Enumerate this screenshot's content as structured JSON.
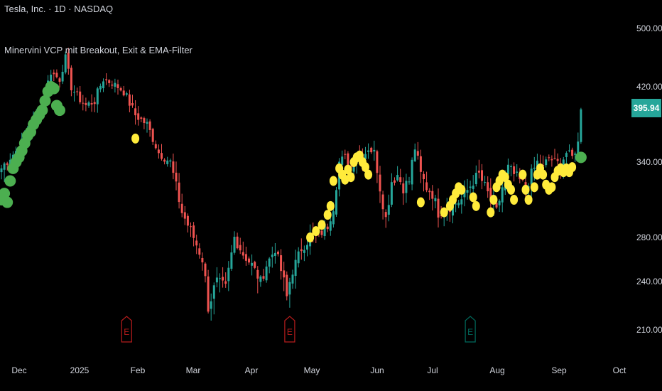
{
  "header": {
    "symbol_line": "Tesla, Inc. · 1D · NASDAQ",
    "indicator_line": "Minervini VCP mit Breakout, Exit & EMA-Filter"
  },
  "last_price_label": "395.94",
  "colors": {
    "background": "#000000",
    "up_candle": "#26a69a",
    "down_candle": "#ef5350",
    "breakout_marker": "#4caf50",
    "exit_marker": "#ffeb3b",
    "earnings_flag_red": "#b71c1c",
    "earnings_flag_green": "#00695c"
  },
  "chart_data": {
    "type": "candlestick",
    "y_axis": {
      "ticks": [
        500,
        420,
        340,
        280,
        240,
        210
      ],
      "range": [
        197,
        520
      ]
    },
    "x_axis": {
      "ticks": [
        "Dec",
        "2025",
        "Feb",
        "Mar",
        "Apr",
        "May",
        "Jun",
        "Jul",
        "Aug",
        "Sep",
        "Oct"
      ]
    },
    "anchors": [
      {
        "d": 0,
        "close": 335
      },
      {
        "d": 6,
        "close": 355
      },
      {
        "d": 10,
        "close": 380
      },
      {
        "d": 14,
        "close": 400
      },
      {
        "d": 17,
        "close": 440
      },
      {
        "d": 20,
        "close": 430
      },
      {
        "d": 22,
        "close": 460
      },
      {
        "d": 24,
        "close": 420
      },
      {
        "d": 26,
        "close": 410
      },
      {
        "d": 29,
        "close": 400
      },
      {
        "d": 32,
        "close": 405
      },
      {
        "d": 35,
        "close": 430
      },
      {
        "d": 38,
        "close": 425
      },
      {
        "d": 42,
        "close": 415
      },
      {
        "d": 46,
        "close": 390
      },
      {
        "d": 50,
        "close": 380
      },
      {
        "d": 54,
        "close": 350
      },
      {
        "d": 58,
        "close": 340
      },
      {
        "d": 62,
        "close": 300
      },
      {
        "d": 66,
        "close": 280
      },
      {
        "d": 69,
        "close": 260
      },
      {
        "d": 71,
        "close": 225
      },
      {
        "d": 74,
        "close": 240
      },
      {
        "d": 77,
        "close": 235
      },
      {
        "d": 80,
        "close": 280
      },
      {
        "d": 83,
        "close": 265
      },
      {
        "d": 86,
        "close": 255
      },
      {
        "d": 89,
        "close": 240
      },
      {
        "d": 91,
        "close": 255
      },
      {
        "d": 94,
        "close": 270
      },
      {
        "d": 96,
        "close": 250
      },
      {
        "d": 98,
        "close": 230
      },
      {
        "d": 100,
        "close": 250
      },
      {
        "d": 103,
        "close": 270
      },
      {
        "d": 106,
        "close": 280
      },
      {
        "d": 109,
        "close": 282
      },
      {
        "d": 112,
        "close": 290
      },
      {
        "d": 114,
        "close": 305
      },
      {
        "d": 116,
        "close": 340
      },
      {
        "d": 118,
        "close": 345
      },
      {
        "d": 120,
        "close": 335
      },
      {
        "d": 122,
        "close": 350
      },
      {
        "d": 124,
        "close": 345
      },
      {
        "d": 126,
        "close": 355
      },
      {
        "d": 128,
        "close": 350
      },
      {
        "d": 130,
        "close": 320
      },
      {
        "d": 132,
        "close": 295
      },
      {
        "d": 134,
        "close": 325
      },
      {
        "d": 136,
        "close": 330
      },
      {
        "d": 138,
        "close": 320
      },
      {
        "d": 140,
        "close": 325
      },
      {
        "d": 142,
        "close": 355
      },
      {
        "d": 144,
        "close": 330
      },
      {
        "d": 146,
        "close": 320
      },
      {
        "d": 148,
        "close": 315
      },
      {
        "d": 150,
        "close": 300
      },
      {
        "d": 154,
        "close": 305
      },
      {
        "d": 158,
        "close": 310
      },
      {
        "d": 162,
        "close": 325
      },
      {
        "d": 164,
        "close": 330
      },
      {
        "d": 166,
        "close": 320
      },
      {
        "d": 168,
        "close": 310
      },
      {
        "d": 170,
        "close": 300
      },
      {
        "d": 172,
        "close": 320
      },
      {
        "d": 174,
        "close": 335
      },
      {
        "d": 176,
        "close": 330
      },
      {
        "d": 178,
        "close": 325
      },
      {
        "d": 180,
        "close": 320
      },
      {
        "d": 182,
        "close": 330
      },
      {
        "d": 184,
        "close": 340
      },
      {
        "d": 186,
        "close": 335
      },
      {
        "d": 188,
        "close": 345
      },
      {
        "d": 190,
        "close": 340
      },
      {
        "d": 192,
        "close": 338
      },
      {
        "d": 194,
        "close": 350
      },
      {
        "d": 196,
        "close": 345
      },
      {
        "d": 198,
        "close": 360
      },
      {
        "d": 199,
        "close": 396
      }
    ],
    "breakout_markers": [
      {
        "d": 0,
        "price": 310
      },
      {
        "d": 1,
        "price": 315
      },
      {
        "d": 2,
        "price": 308
      },
      {
        "d": 3,
        "price": 325
      },
      {
        "d": 4,
        "price": 335
      },
      {
        "d": 5,
        "price": 340
      },
      {
        "d": 6,
        "price": 345
      },
      {
        "d": 7,
        "price": 352
      },
      {
        "d": 8,
        "price": 360
      },
      {
        "d": 9,
        "price": 368
      },
      {
        "d": 10,
        "price": 372
      },
      {
        "d": 11,
        "price": 380
      },
      {
        "d": 12,
        "price": 385
      },
      {
        "d": 13,
        "price": 390
      },
      {
        "d": 14,
        "price": 395
      },
      {
        "d": 15,
        "price": 405
      },
      {
        "d": 16,
        "price": 415
      },
      {
        "d": 17,
        "price": 420
      },
      {
        "d": 18,
        "price": 418
      },
      {
        "d": 19,
        "price": 400
      },
      {
        "d": 20,
        "price": 395
      },
      {
        "d": 199,
        "price": 345
      }
    ],
    "exit_markers": [
      {
        "d": 46,
        "price": 365
      },
      {
        "d": 106,
        "price": 280
      },
      {
        "d": 108,
        "price": 285
      },
      {
        "d": 110,
        "price": 290
      },
      {
        "d": 112,
        "price": 298
      },
      {
        "d": 113,
        "price": 305
      },
      {
        "d": 114,
        "price": 325
      },
      {
        "d": 116,
        "price": 335
      },
      {
        "d": 117,
        "price": 330
      },
      {
        "d": 118,
        "price": 326
      },
      {
        "d": 119,
        "price": 334
      },
      {
        "d": 120,
        "price": 328
      },
      {
        "d": 121,
        "price": 340
      },
      {
        "d": 122,
        "price": 345
      },
      {
        "d": 123,
        "price": 347
      },
      {
        "d": 124,
        "price": 340
      },
      {
        "d": 125,
        "price": 336
      },
      {
        "d": 126,
        "price": 330
      },
      {
        "d": 144,
        "price": 308
      },
      {
        "d": 152,
        "price": 300
      },
      {
        "d": 154,
        "price": 305
      },
      {
        "d": 155,
        "price": 310
      },
      {
        "d": 156,
        "price": 315
      },
      {
        "d": 157,
        "price": 320
      },
      {
        "d": 158,
        "price": 318
      },
      {
        "d": 162,
        "price": 312
      },
      {
        "d": 163,
        "price": 305
      },
      {
        "d": 168,
        "price": 300
      },
      {
        "d": 169,
        "price": 310
      },
      {
        "d": 170,
        "price": 320
      },
      {
        "d": 171,
        "price": 325
      },
      {
        "d": 172,
        "price": 330
      },
      {
        "d": 173,
        "price": 328
      },
      {
        "d": 174,
        "price": 322
      },
      {
        "d": 175,
        "price": 318
      },
      {
        "d": 176,
        "price": 310
      },
      {
        "d": 179,
        "price": 330
      },
      {
        "d": 180,
        "price": 318
      },
      {
        "d": 181,
        "price": 310
      },
      {
        "d": 183,
        "price": 320
      },
      {
        "d": 184,
        "price": 330
      },
      {
        "d": 185,
        "price": 335
      },
      {
        "d": 186,
        "price": 330
      },
      {
        "d": 187,
        "price": 322
      },
      {
        "d": 188,
        "price": 318
      },
      {
        "d": 189,
        "price": 320
      },
      {
        "d": 190,
        "price": 328
      },
      {
        "d": 191,
        "price": 333
      },
      {
        "d": 192,
        "price": 335
      },
      {
        "d": 193,
        "price": 332
      },
      {
        "d": 194,
        "price": 335
      },
      {
        "d": 195,
        "price": 332
      },
      {
        "d": 196,
        "price": 336
      }
    ],
    "earnings_flags": [
      {
        "d": 43,
        "label": "E",
        "color": "red"
      },
      {
        "d": 99,
        "label": "E",
        "color": "red"
      },
      {
        "d": 161,
        "label": "E",
        "color": "green"
      }
    ]
  }
}
